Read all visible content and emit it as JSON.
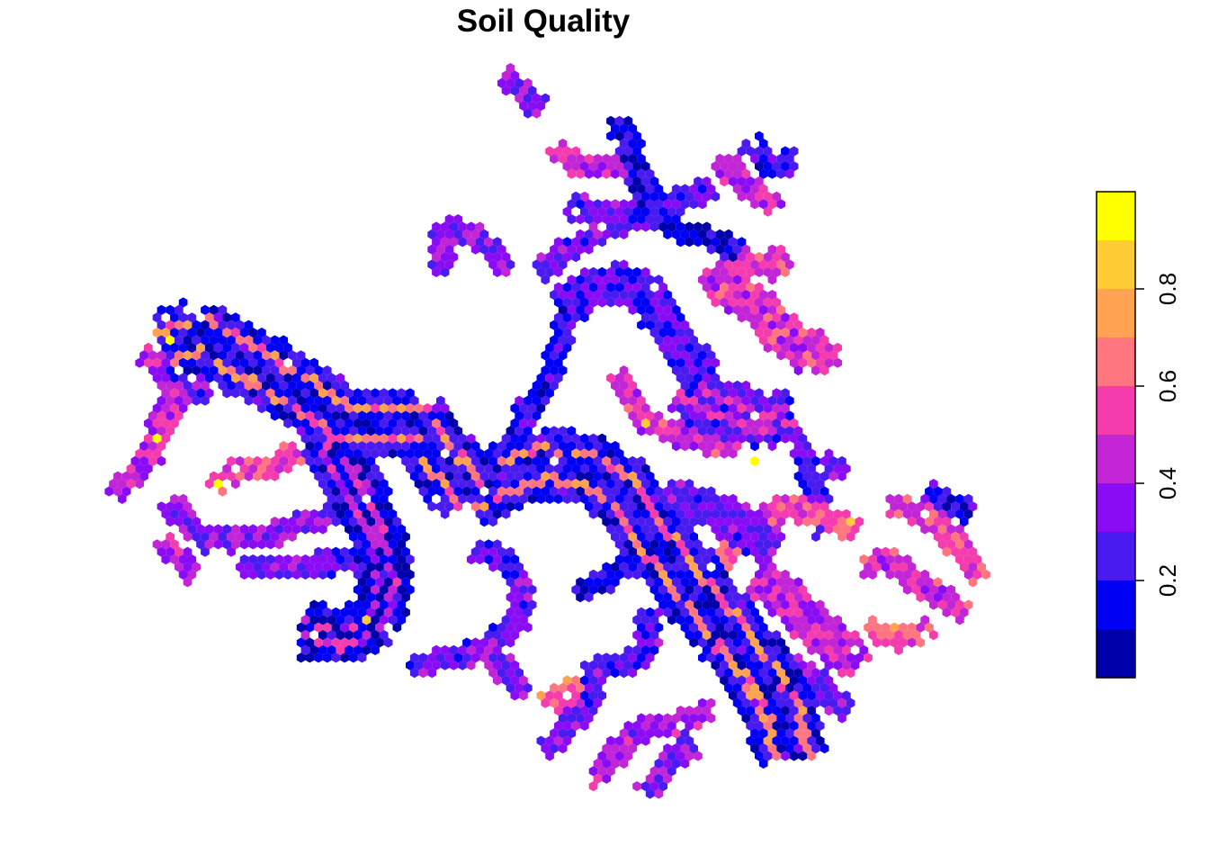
{
  "title": "Soil Quality",
  "legend": {
    "ticks": [
      {
        "value": 0.2,
        "label": "0.2"
      },
      {
        "value": 0.4,
        "label": "0.4"
      },
      {
        "value": 0.6,
        "label": "0.6"
      },
      {
        "value": 0.8,
        "label": "0.8"
      }
    ],
    "range": [
      0,
      1
    ],
    "bins": [
      {
        "from": 0.0,
        "to": 0.1,
        "color": "#0000AA"
      },
      {
        "from": 0.1,
        "to": 0.2,
        "color": "#0000F4"
      },
      {
        "from": 0.2,
        "to": 0.3,
        "color": "#4A1BF0"
      },
      {
        "from": 0.3,
        "to": 0.4,
        "color": "#8A0CF5"
      },
      {
        "from": 0.4,
        "to": 0.5,
        "color": "#C125D6"
      },
      {
        "from": 0.5,
        "to": 0.6,
        "color": "#F53CAE"
      },
      {
        "from": 0.6,
        "to": 0.7,
        "color": "#FF7580"
      },
      {
        "from": 0.7,
        "to": 0.8,
        "color": "#FFA352"
      },
      {
        "from": 0.8,
        "to": 0.9,
        "color": "#FFCC36"
      },
      {
        "from": 0.9,
        "to": 1.0,
        "color": "#FFFF00"
      }
    ]
  },
  "chart_data": {
    "type": "heatmap",
    "title": "Soil Quality",
    "value_range": [
      0,
      1
    ],
    "legend_ticks": [
      0.2,
      0.4,
      0.6,
      0.8
    ],
    "legend_placement": "right",
    "description_free": true
  }
}
